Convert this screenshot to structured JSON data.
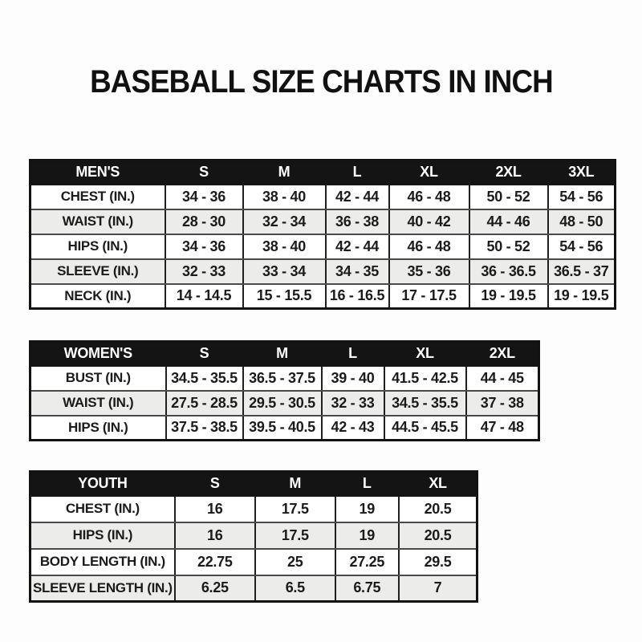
{
  "page_title": "BASEBALL SIZE CHARTS IN INCH",
  "unit": "INCH",
  "colors": {
    "header_bg": "#141414",
    "header_text": "#ffffff",
    "row_alt_bg": "#ececea",
    "text": "#1b1b1b"
  },
  "tables": [
    {
      "id": "mens",
      "header": [
        "MEN'S",
        "S",
        "M",
        "L",
        "XL",
        "2XL",
        "3XL"
      ],
      "rows": [
        [
          "CHEST (IN.)",
          "34 - 36",
          "38 - 40",
          "42 - 44",
          "46 - 48",
          "50 - 52",
          "54 - 56"
        ],
        [
          "WAIST (IN.)",
          "28 - 30",
          "32 - 34",
          "36 - 38",
          "40 - 42",
          "44 - 46",
          "48 - 50"
        ],
        [
          "HIPS (IN.)",
          "34 - 36",
          "38 - 40",
          "42 - 44",
          "46 - 48",
          "50 - 52",
          "54 - 56"
        ],
        [
          "SLEEVE (IN.)",
          "32 - 33",
          "33 - 34",
          "34 - 35",
          "35 - 36",
          "36 - 36.5",
          "36.5 - 37"
        ],
        [
          "NECK (IN.)",
          "14 - 14.5",
          "15 - 15.5",
          "16 - 16.5",
          "17 - 17.5",
          "19 - 19.5",
          "19 - 19.5"
        ]
      ]
    },
    {
      "id": "womens",
      "header": [
        "WOMEN'S",
        "S",
        "M",
        "L",
        "XL",
        "2XL"
      ],
      "rows": [
        [
          "BUST (IN.)",
          "34.5 - 35.5",
          "36.5 - 37.5",
          "39 - 40",
          "41.5 - 42.5",
          "44 - 45"
        ],
        [
          "WAIST (IN.)",
          "27.5 - 28.5",
          "29.5 - 30.5",
          "32 - 33",
          "34.5 - 35.5",
          "37 - 38"
        ],
        [
          "HIPS (IN.)",
          "37.5 - 38.5",
          "39.5 - 40.5",
          "42 - 43",
          "44.5 - 45.5",
          "47 - 48"
        ]
      ]
    },
    {
      "id": "youth",
      "header": [
        "YOUTH",
        "S",
        "M",
        "L",
        "XL"
      ],
      "rows": [
        [
          "CHEST (IN.)",
          "16",
          "17.5",
          "19",
          "20.5"
        ],
        [
          "HIPS (IN.)",
          "16",
          "17.5",
          "19",
          "20.5"
        ],
        [
          "BODY LENGTH (IN.)",
          "22.75",
          "25",
          "27.25",
          "29.5"
        ],
        [
          "SLEEVE LENGTH (IN.)",
          "6.25",
          "6.5",
          "6.75",
          "7"
        ]
      ]
    }
  ]
}
